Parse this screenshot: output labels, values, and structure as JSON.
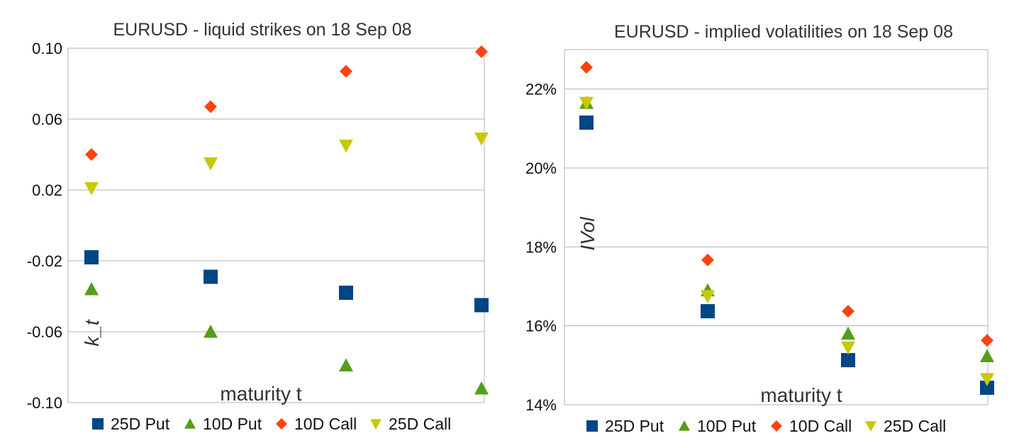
{
  "chart_data": [
    {
      "type": "scatter",
      "title": "EURUSD - liquid strikes on 18 Sep 08",
      "xlabel": "maturity t",
      "ylabel": "k_t",
      "ylim": [
        -0.1,
        0.1
      ],
      "yticks": [
        "0.10",
        "0.06",
        "0.02",
        "-0.02",
        "-0.06",
        "-0.10"
      ],
      "ytick_values": [
        0.1,
        0.06,
        0.02,
        -0.02,
        -0.06,
        -0.1
      ],
      "grid": true,
      "legend_position": "bottom",
      "x": [
        1,
        2,
        3,
        4
      ],
      "series": [
        {
          "name": "25D Put",
          "marker": "square",
          "color": "#004586",
          "values": [
            -0.018,
            -0.029,
            -0.038,
            -0.045
          ]
        },
        {
          "name": "10D Put",
          "marker": "triangle-up",
          "color": "#579d1c",
          "values": [
            -0.036,
            -0.06,
            -0.079,
            -0.092
          ]
        },
        {
          "name": "10D Call",
          "marker": "diamond",
          "color": "#ff420e",
          "values": [
            0.04,
            0.067,
            0.087,
            0.098
          ]
        },
        {
          "name": "25D Call",
          "marker": "triangle-down",
          "color": "#c8c800",
          "values": [
            0.021,
            0.035,
            0.045,
            0.049
          ]
        }
      ]
    },
    {
      "type": "scatter",
      "title": "EURUSD - implied volatilities on 18 Sep 08",
      "xlabel": "maturity t",
      "ylabel": "IVol",
      "ylim": [
        0.14,
        0.23
      ],
      "yticks": [
        "22%",
        "20%",
        "18%",
        "16%",
        "14%"
      ],
      "ytick_values": [
        0.22,
        0.2,
        0.18,
        0.16,
        0.14
      ],
      "grid": true,
      "legend_position": "bottom",
      "x": [
        1,
        2,
        3,
        4
      ],
      "series": [
        {
          "name": "25D Put",
          "marker": "square",
          "color": "#004586",
          "values": [
            0.2115,
            0.1637,
            0.1513,
            0.1443
          ]
        },
        {
          "name": "10D Put",
          "marker": "triangle-up",
          "color": "#579d1c",
          "values": [
            0.2165,
            0.169,
            0.158,
            0.1523
          ]
        },
        {
          "name": "10D Call",
          "marker": "diamond",
          "color": "#ff420e",
          "values": [
            0.2255,
            0.1767,
            0.1637,
            0.1563
          ]
        },
        {
          "name": "25D Call",
          "marker": "triangle-down",
          "color": "#c8c800",
          "values": [
            0.2165,
            0.1675,
            0.1545,
            0.1465
          ]
        }
      ]
    }
  ]
}
